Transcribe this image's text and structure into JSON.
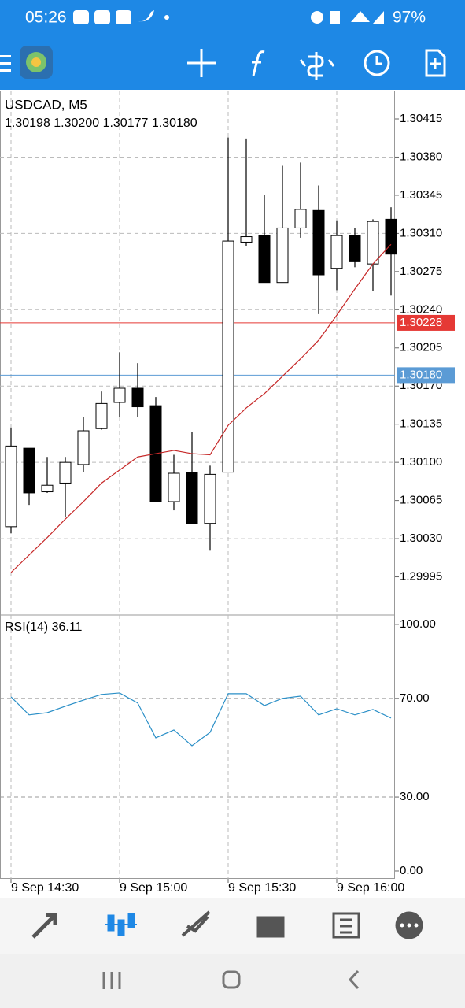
{
  "status_bar": {
    "time": "05:26",
    "battery": "97%"
  },
  "chart_data": [
    {
      "type": "candlestick",
      "title": "USDCAD, M5",
      "subtitle": "1.30198 1.30200 1.30177 1.30180",
      "categories": [
        "9 Sep 14:30",
        null,
        null,
        null,
        null,
        null,
        "9 Sep 15:00",
        null,
        null,
        null,
        null,
        null,
        "9 Sep 15:30",
        null,
        null,
        null,
        null,
        null,
        "9 Sep 16:00",
        null,
        null,
        null
      ],
      "open": [
        1.30041,
        1.30113,
        1.30073,
        1.30081,
        1.30098,
        1.30131,
        1.30155,
        1.30168,
        1.30152,
        1.30064,
        1.30091,
        1.30044,
        1.30091,
        1.30302,
        1.30308,
        1.30265,
        1.30315,
        1.30331,
        1.30278,
        1.30308,
        1.30282,
        1.30323
      ],
      "high": [
        1.30132,
        1.30113,
        1.30105,
        1.30105,
        1.30142,
        1.30165,
        1.30201,
        1.30191,
        1.3016,
        1.30107,
        1.30128,
        1.30097,
        1.30398,
        1.30397,
        1.30345,
        1.30372,
        1.30375,
        1.30354,
        1.30322,
        1.30315,
        1.30323,
        1.30334
      ],
      "low": [
        1.30035,
        1.30061,
        1.30072,
        1.3005,
        1.30091,
        1.3013,
        1.30142,
        1.30142,
        1.30064,
        1.30056,
        1.30044,
        1.30019,
        1.30091,
        1.30298,
        1.30265,
        1.30265,
        1.30306,
        1.30236,
        1.30258,
        1.30279,
        1.30257,
        1.30253
      ],
      "close": [
        1.30115,
        1.30072,
        1.30079,
        1.301,
        1.30129,
        1.30154,
        1.30168,
        1.30151,
        1.30064,
        1.3009,
        1.30044,
        1.30089,
        1.30303,
        1.30307,
        1.30265,
        1.30315,
        1.30332,
        1.30272,
        1.30308,
        1.30284,
        1.30321,
        1.30291
      ],
      "up_color": "#ffffff",
      "down_color": "#000000",
      "moving_average": {
        "color": "#c62828",
        "values": [
          1.29999,
          1.30015,
          1.30031,
          1.30048,
          1.30064,
          1.30081,
          1.30093,
          1.30105,
          1.30108,
          1.30111,
          1.30108,
          1.30107,
          1.30134,
          1.3015,
          1.30163,
          1.30179,
          1.30195,
          1.30212,
          1.30235,
          1.30259,
          1.30282,
          1.303
        ]
      },
      "price_lines": [
        {
          "value": 1.30228,
          "label": "1.30228",
          "color": "#e53935"
        },
        {
          "value": 1.3018,
          "label": "1.30180",
          "color": "#5b9bd5"
        }
      ],
      "ylim": [
        1.2996,
        1.30441
      ],
      "yticks": [
        {
          "value": 1.30415,
          "label": "1.30415"
        },
        {
          "value": 1.3038,
          "label": "1.30380"
        },
        {
          "value": 1.30345,
          "label": "1.30345"
        },
        {
          "value": 1.3031,
          "label": "1.30310"
        },
        {
          "value": 1.30275,
          "label": "1.30275"
        },
        {
          "value": 1.3024,
          "label": "1.30240"
        },
        {
          "value": 1.30205,
          "label": "1.30205"
        },
        {
          "value": 1.3017,
          "label": "1.30170"
        },
        {
          "value": 1.30135,
          "label": "1.30135"
        },
        {
          "value": 1.301,
          "label": "1.30100"
        },
        {
          "value": 1.30065,
          "label": "1.30065"
        },
        {
          "value": 1.3003,
          "label": "1.30030"
        },
        {
          "value": 1.29995,
          "label": "1.29995"
        }
      ],
      "grid": true
    },
    {
      "type": "line",
      "title": "RSI(14) 36.11",
      "color": "#2a8fc7",
      "values": [
        70.6,
        63.3,
        64.2,
        66.8,
        69.3,
        71.6,
        72.2,
        68.1,
        54.0,
        57.2,
        50.8,
        56.2,
        71.9,
        71.9,
        67.1,
        70.0,
        70.9,
        63.3,
        65.8,
        63.3,
        65.5,
        62.0
      ],
      "ylim": [
        -3.2,
        103.8
      ],
      "yticks": [
        {
          "value": 100,
          "label": "100.00"
        },
        {
          "value": 70,
          "label": "70.00"
        },
        {
          "value": 30,
          "label": "30.00"
        },
        {
          "value": 0,
          "label": "0.00"
        }
      ],
      "grid_values": [
        70,
        30
      ]
    }
  ]
}
